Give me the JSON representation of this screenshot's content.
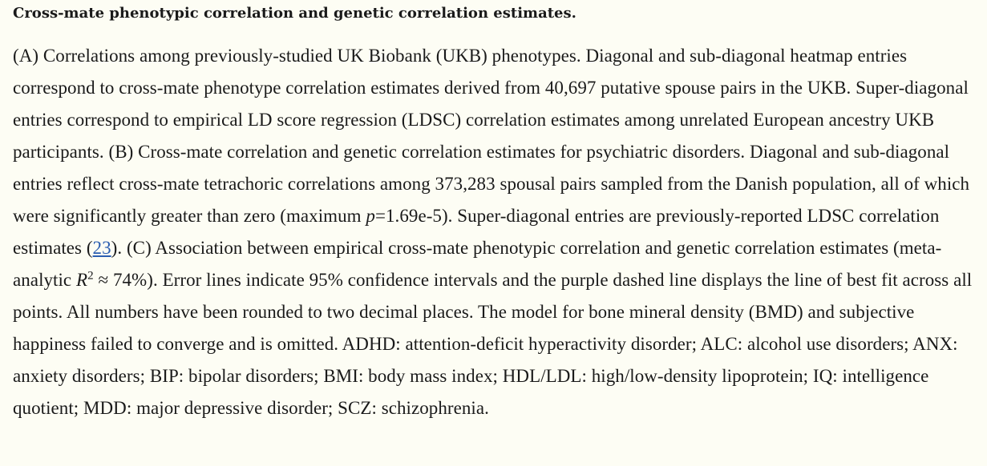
{
  "caption": {
    "title": "Cross-mate phenotypic correlation and genetic correlation estimates.",
    "t1": "(A) Correlations among previously-studied UK Biobank (UKB) phenotypes. Diagonal and sub-diagonal heatmap entries correspond to cross-mate phenotype correlation estimates derived from 40,697 putative spouse pairs in the UKB. Super-diagonal entries correspond to empirical LD score regression (LDSC) correlation estimates among unrelated European ancestry UKB participants. (B) Cross-mate correlation and genetic correlation estimates for psychiatric disorders. Diagonal and sub-diagonal entries reflect cross-mate tetrachoric correlations among 373,283 spousal pairs sampled from the Danish population, all of which were significantly greater than zero (maximum ",
    "p_symbol": "p",
    "t2": "=1.69e-5). Super-diagonal entries are previously-reported LDSC correlation estimates (",
    "ref": "23",
    "t3": "). (C) Association between empirical cross-mate phenotypic correlation and genetic correlation estimates (meta-analytic ",
    "r_symbol": "R",
    "r_sup": "2",
    "t4": " ≈ 74%). Error lines indicate 95% confidence intervals and the purple dashed line displays the line of best fit across all points. All numbers have been rounded to two decimal places. The model for bone mineral density (BMD) and subjective happiness failed to converge and is omitted. ADHD: attention-deficit hyperactivity disorder; ALC: alcohol use disorders; ANX: anxiety disorders; BIP: bipolar disorders; BMI: body mass index; HDL/LDL: high/low-density lipoprotein; IQ: intelligence quotient; MDD: major depressive disorder; SCZ: schizophrenia."
  }
}
